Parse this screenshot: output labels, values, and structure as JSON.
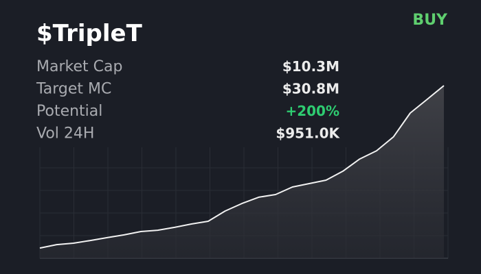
{
  "header": {
    "title": "$TripleT",
    "action": "BUY"
  },
  "stats": [
    {
      "label": "Market Cap",
      "value": "$10.3M"
    },
    {
      "label": "Target MC",
      "value": "$30.8M"
    },
    {
      "label": "Potential",
      "value": "+200%"
    },
    {
      "label": "Vol 24H",
      "value": "$951.0K"
    }
  ],
  "chart_data": {
    "type": "area",
    "values": [
      5.7,
      7.6,
      8.4,
      9.9,
      11.5,
      13.0,
      14.9,
      15.6,
      17.2,
      19.1,
      20.6,
      26.3,
      30.5,
      34.0,
      35.5,
      39.7,
      41.6,
      43.5,
      48.5,
      55.3,
      59.9,
      67.6,
      80.9,
      88.5,
      96.2
    ],
    "ylim": [
      0,
      100
    ],
    "grid": true
  }
}
